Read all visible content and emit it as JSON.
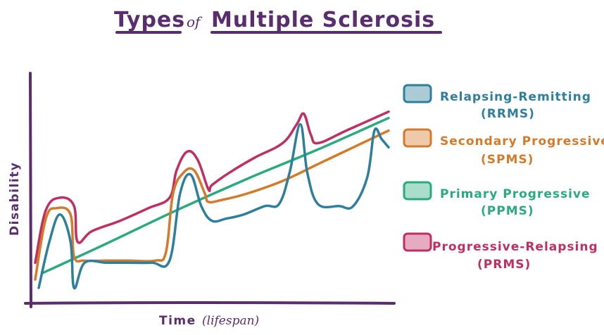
{
  "title": {
    "part1": "Types",
    "part2": "of",
    "part3": "Multiple Sclerosis"
  },
  "colors": {
    "title": "#5a2d6e",
    "axis": "#5a2d6e",
    "rrms": "#2e7f9c",
    "spms": "#d47a2b",
    "ppms": "#2bab7c",
    "prms": "#c02e62"
  },
  "chart_data": {
    "type": "line",
    "xlabel": "Time",
    "xlabel_sub": "(lifespan)",
    "ylabel": "Disability",
    "xlim": [
      0,
      100
    ],
    "ylim": [
      0,
      100
    ],
    "grid": false,
    "legend_position": "right",
    "series": [
      {
        "key": "rrms",
        "name": "Relapsing-Remitting",
        "abbr": "(RRMS)",
        "x": [
          1,
          4,
          7,
          10,
          11,
          14,
          20,
          26,
          33,
          38,
          41,
          44,
          47,
          50,
          54,
          59,
          65,
          69,
          72,
          75,
          77,
          80,
          86,
          90,
          94,
          96,
          98,
          100
        ],
        "y": [
          3,
          25,
          38,
          25,
          3,
          15,
          15,
          15,
          15,
          16,
          48,
          57,
          42,
          35,
          36,
          38,
          42,
          43,
          58,
          81,
          58,
          43,
          42,
          42,
          56,
          78,
          74,
          70
        ]
      },
      {
        "key": "spms",
        "name": "Secondary Progressive",
        "abbr": "(SPMS)",
        "x": [
          0,
          3,
          6,
          10,
          11,
          14,
          20,
          26,
          34,
          37,
          39,
          42,
          45,
          48,
          49,
          53,
          60,
          70,
          80,
          90,
          100
        ],
        "y": [
          7,
          36,
          41,
          38,
          18,
          16,
          16,
          16,
          16,
          20,
          48,
          58,
          59,
          48,
          44,
          45,
          48,
          54,
          62,
          70,
          78
        ]
      },
      {
        "key": "ppms",
        "name": "Primary Progressive",
        "abbr": "(PPMS)",
        "x": [
          2,
          20,
          40,
          60,
          80,
          100
        ],
        "y": [
          10,
          24,
          40,
          55,
          69,
          84
        ]
      },
      {
        "key": "prms",
        "name": "Progressive-Relapsing",
        "abbr": "(PRMS)",
        "x": [
          0,
          3,
          7,
          11,
          12,
          16,
          24,
          32,
          38,
          40,
          43,
          46,
          49,
          50,
          55,
          62,
          70,
          74,
          76,
          78,
          80,
          88,
          96,
          100
        ],
        "y": [
          15,
          40,
          46,
          42,
          25,
          30,
          35,
          41,
          46,
          59,
          68,
          64,
          50,
          52,
          58,
          65,
          72,
          81,
          86,
          76,
          72,
          78,
          84,
          87
        ]
      }
    ]
  }
}
